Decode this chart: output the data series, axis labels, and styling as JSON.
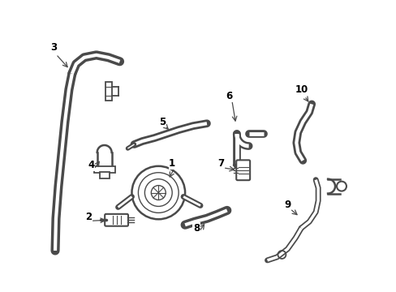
{
  "background_color": "#ffffff",
  "line_color": "#4a4a4a",
  "label_color": "#000000",
  "figsize": [
    4.89,
    3.6
  ],
  "dpi": 100
}
